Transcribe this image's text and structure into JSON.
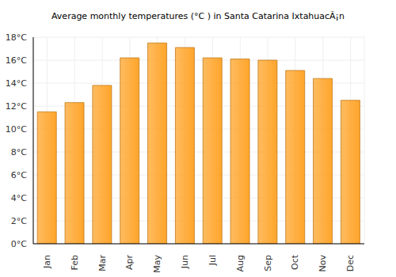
{
  "chart_data": {
    "type": "bar",
    "title": "Average monthly temperatures (°C ) in Santa Catarina IxtahuacÃ¡n",
    "categories": [
      "Jan",
      "Feb",
      "Mar",
      "Apr",
      "May",
      "Jun",
      "Jul",
      "Aug",
      "Sep",
      "Oct",
      "Nov",
      "Dec"
    ],
    "values": [
      11.5,
      12.3,
      13.8,
      16.2,
      17.5,
      17.1,
      16.2,
      16.1,
      16.0,
      15.1,
      14.4,
      12.5
    ],
    "color": "#ffa52b",
    "ylim": [
      0,
      18
    ],
    "yticks": [
      {
        "value": 0,
        "label": "0°C"
      },
      {
        "value": 2,
        "label": "2°C"
      },
      {
        "value": 4,
        "label": "4°C"
      },
      {
        "value": 6,
        "label": "6°C"
      },
      {
        "value": 8,
        "label": "8°C"
      },
      {
        "value": 10,
        "label": "10°C"
      },
      {
        "value": 12,
        "label": "12°C"
      },
      {
        "value": 14,
        "label": "14°C"
      },
      {
        "value": 16,
        "label": "16°C"
      },
      {
        "value": 18,
        "label": "18°C"
      }
    ],
    "grid": true
  }
}
